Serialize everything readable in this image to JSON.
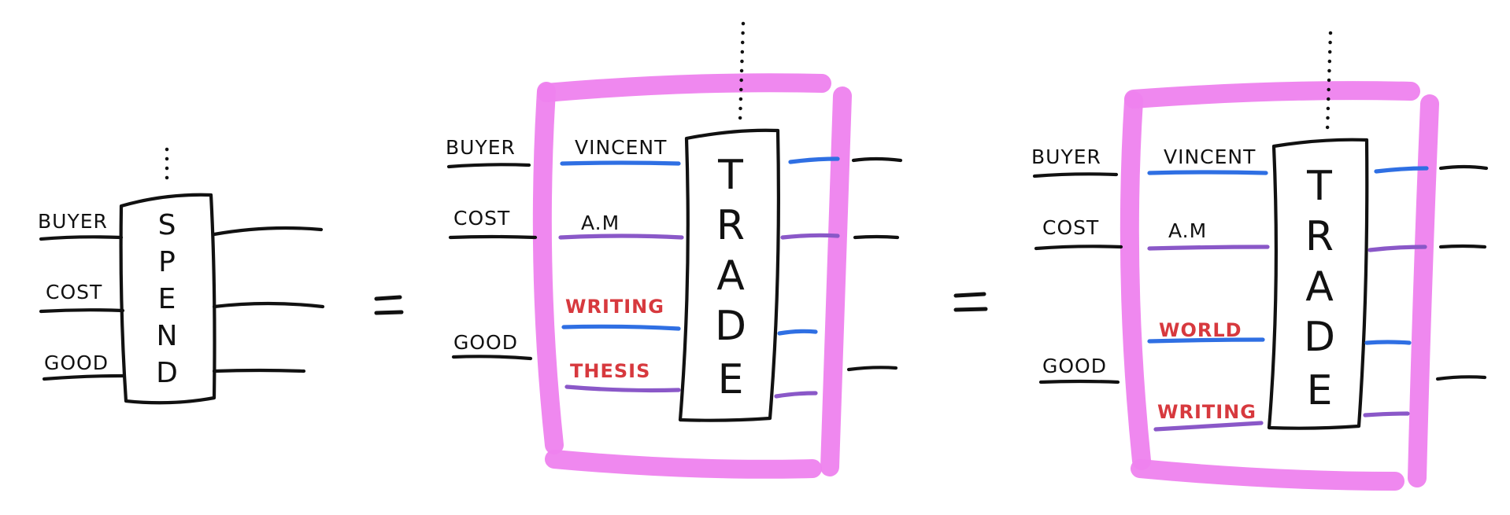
{
  "equals_sign": "=",
  "diagrams": [
    {
      "box_text": "SPEND",
      "inputs": [
        "BUYER",
        "COST",
        "GOOD"
      ]
    },
    {
      "box_text": "TRADE",
      "inputs": [
        "BUYER",
        "COST",
        "GOOD"
      ],
      "wire_labels": [
        "VINCENT",
        "A.M",
        "WRITING",
        "THESIS"
      ]
    },
    {
      "box_text": "TRADE",
      "inputs": [
        "BUYER",
        "COST",
        "GOOD"
      ],
      "wire_labels": [
        "VINCENT",
        "A.M",
        "WORLD",
        "WRITING"
      ]
    }
  ],
  "colors": {
    "frame": "#ee82ee",
    "wire_blue": "#2f6fe3",
    "wire_purple": "#8a58c8",
    "label_red": "#d7393e",
    "ink": "#111111"
  }
}
